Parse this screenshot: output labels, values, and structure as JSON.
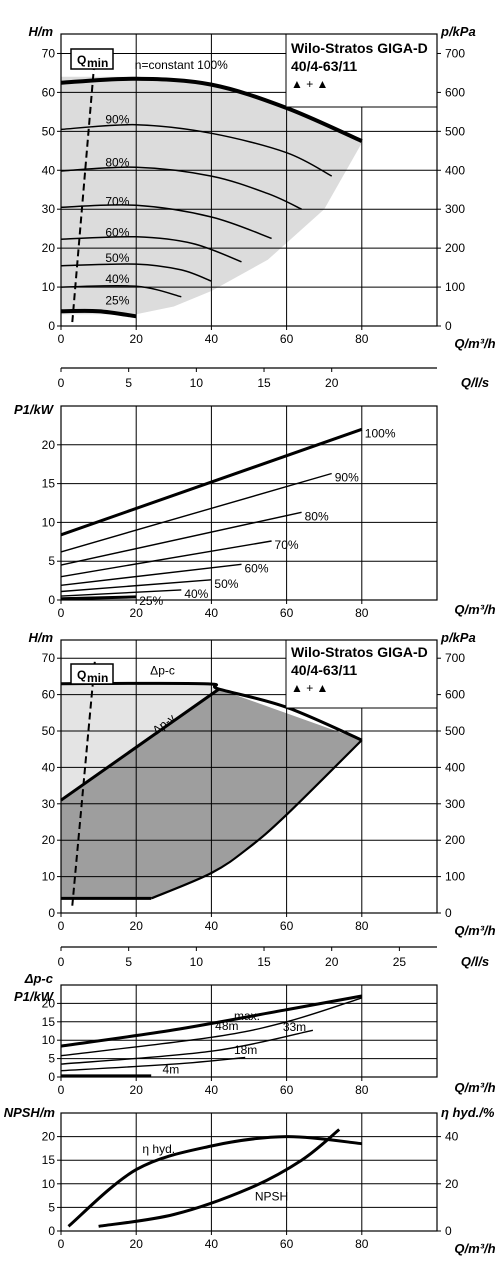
{
  "chart_data": [
    {
      "type": "line",
      "id": "head-variable-speed",
      "title": [
        "Wilo-Stratos GIGA-D",
        "40/4-63/11"
      ],
      "title_symbol": "▲ + ▲",
      "ylabel": "H/m",
      "y2label": "p/kPa",
      "xlabel": "Q/m³/h",
      "xlim": [
        0,
        100
      ],
      "ylim": [
        0,
        75
      ],
      "y2lim": [
        0,
        750
      ],
      "xticks": [
        0,
        20,
        40,
        60,
        80
      ],
      "yticks": [
        0,
        10,
        20,
        30,
        40,
        50,
        60,
        70
      ],
      "y2ticks": [
        0,
        100,
        200,
        300,
        400,
        500,
        600,
        700
      ],
      "qmin_label": "Q",
      "qmin_sub": "min",
      "qmin_line": [
        [
          3,
          1
        ],
        [
          9,
          69
        ]
      ],
      "shaded_region": [
        [
          0,
          3
        ],
        [
          0,
          64
        ],
        [
          20,
          64
        ],
        [
          40,
          62.5
        ],
        [
          60,
          56
        ],
        [
          80,
          47
        ],
        [
          70,
          30
        ],
        [
          55,
          17
        ],
        [
          40,
          9
        ],
        [
          30,
          5
        ],
        [
          20,
          3
        ]
      ],
      "series": [
        {
          "name": "n=constant 100%",
          "bold": true,
          "points": [
            [
              0,
              62.5
            ],
            [
              20,
              63.5
            ],
            [
              40,
              62
            ],
            [
              60,
              56
            ],
            [
              80,
              47.5
            ]
          ]
        },
        {
          "name": "90%",
          "points": [
            [
              0,
              50.5
            ],
            [
              20,
              51.7
            ],
            [
              40,
              49.5
            ],
            [
              60,
              44.5
            ],
            [
              72,
              38.5
            ]
          ]
        },
        {
          "name": "80%",
          "points": [
            [
              0,
              39.8
            ],
            [
              20,
              40.8
            ],
            [
              40,
              38.5
            ],
            [
              55,
              34
            ],
            [
              64,
              30
            ]
          ]
        },
        {
          "name": "70%",
          "points": [
            [
              0,
              30.5
            ],
            [
              20,
              31
            ],
            [
              40,
              28
            ],
            [
              56,
              22.5
            ]
          ]
        },
        {
          "name": "60%",
          "points": [
            [
              0,
              22.3
            ],
            [
              20,
              22.9
            ],
            [
              35,
              21.2
            ],
            [
              48,
              16.5
            ]
          ]
        },
        {
          "name": "50%",
          "points": [
            [
              0,
              15.5
            ],
            [
              20,
              15.9
            ],
            [
              32,
              14.4
            ],
            [
              40,
              11.5
            ]
          ]
        },
        {
          "name": "40%",
          "points": [
            [
              0,
              10
            ],
            [
              20,
              10.2
            ],
            [
              32,
              7.5
            ]
          ]
        },
        {
          "name": "25%",
          "bold": true,
          "points": [
            [
              0,
              3.8
            ],
            [
              10,
              3.8
            ],
            [
              20,
              2.5
            ]
          ]
        }
      ]
    },
    {
      "type": "axis",
      "id": "flow-ls-axis",
      "xlabel": "Q/l/s",
      "xlim": [
        0,
        27.78
      ],
      "xticks": [
        0,
        5,
        10,
        15,
        20
      ]
    },
    {
      "type": "line",
      "id": "power-variable-speed",
      "ylabel": "P1/kW",
      "xlabel": "Q/m³/h",
      "xlim": [
        0,
        100
      ],
      "ylim": [
        0,
        25
      ],
      "xticks": [
        0,
        20,
        40,
        60,
        80
      ],
      "yticks": [
        0,
        5,
        10,
        15,
        20
      ],
      "series": [
        {
          "name": "100%",
          "bold": true,
          "points": [
            [
              0,
              8.4
            ],
            [
              80,
              22
            ]
          ]
        },
        {
          "name": "90%",
          "points": [
            [
              0,
              6.2
            ],
            [
              72,
              16.3
            ]
          ]
        },
        {
          "name": "80%",
          "points": [
            [
              0,
              4.5
            ],
            [
              64,
              11.3
            ]
          ]
        },
        {
          "name": "70%",
          "points": [
            [
              0,
              3
            ],
            [
              56,
              7.6
            ]
          ]
        },
        {
          "name": "60%",
          "points": [
            [
              0,
              1.9
            ],
            [
              48,
              4.6
            ]
          ]
        },
        {
          "name": "50%",
          "points": [
            [
              0,
              1.1
            ],
            [
              40,
              2.6
            ]
          ]
        },
        {
          "name": "40%",
          "points": [
            [
              0,
              0.5
            ],
            [
              32,
              1.3
            ]
          ]
        },
        {
          "name": "25%",
          "bold": true,
          "points": [
            [
              0,
              0.15
            ],
            [
              20,
              0.4
            ]
          ]
        }
      ]
    },
    {
      "type": "area",
      "id": "head-differential-pressure",
      "title": [
        "Wilo-Stratos GIGA-D",
        "40/4-63/11"
      ],
      "title_symbol": "▲ + ▲",
      "ylabel": "H/m",
      "y2label": "p/kPa",
      "xlabel": "Q/m³/h",
      "xlim": [
        0,
        100
      ],
      "ylim": [
        0,
        75
      ],
      "y2lim": [
        0,
        750
      ],
      "xticks": [
        0,
        20,
        40,
        60,
        80
      ],
      "yticks": [
        0,
        10,
        20,
        30,
        40,
        50,
        60,
        70
      ],
      "y2ticks": [
        0,
        100,
        200,
        300,
        400,
        500,
        600,
        700
      ],
      "qmin_label": "Q",
      "qmin_sub": "min",
      "qmin_line": [
        [
          3,
          2
        ],
        [
          9,
          69
        ]
      ],
      "light_region": [
        [
          0,
          63
        ],
        [
          38,
          63
        ],
        [
          42,
          61.5
        ],
        [
          0,
          31
        ]
      ],
      "dark_region": [
        [
          0,
          31
        ],
        [
          42,
          61.5
        ],
        [
          80,
          47.5
        ],
        [
          60,
          27
        ],
        [
          50,
          18
        ],
        [
          40,
          11
        ],
        [
          24,
          4
        ],
        [
          0,
          4
        ]
      ],
      "dpc_curve": [
        [
          0,
          63
        ],
        [
          38,
          63
        ],
        [
          42,
          61.5
        ],
        [
          60,
          56.5
        ],
        [
          80,
          47.5
        ]
      ],
      "dpv_line": [
        [
          0,
          31
        ],
        [
          42,
          61.5
        ]
      ],
      "right_edge": [
        [
          80,
          47.5
        ],
        [
          60,
          27
        ],
        [
          50,
          18
        ],
        [
          40,
          11
        ],
        [
          24,
          4
        ]
      ],
      "bottom_curve": [
        [
          0,
          4
        ],
        [
          24,
          4
        ]
      ],
      "dpc_label": "Δp-c",
      "dpv_label": "Δp-v"
    },
    {
      "type": "axis",
      "id": "flow-ls-axis-2",
      "xlabel": "Q/l/s",
      "xlim": [
        0,
        27.78
      ],
      "xticks": [
        0,
        5,
        10,
        15,
        20,
        25
      ]
    },
    {
      "type": "line",
      "id": "power-differential-pressure",
      "ylabel": "P1/kW",
      "ylabel_top": "Δp-c",
      "xlabel": "Q/m³/h",
      "xlim": [
        0,
        100
      ],
      "ylim": [
        0,
        25
      ],
      "xticks": [
        0,
        20,
        40,
        60,
        80
      ],
      "yticks": [
        0,
        5,
        10,
        15,
        20
      ],
      "series": [
        {
          "name": "max.",
          "bold": true,
          "points": [
            [
              0,
              8.4
            ],
            [
              30,
              12.8
            ],
            [
              60,
              18.3
            ],
            [
              80,
              22
            ]
          ]
        },
        {
          "name": "48m",
          "points": [
            [
              0,
              5.8
            ],
            [
              40,
              10.8
            ],
            [
              60,
              15
            ],
            [
              80,
              21.5
            ]
          ]
        },
        {
          "name": "33m",
          "points": [
            [
              0,
              3.5
            ],
            [
              40,
              7
            ],
            [
              67,
              12.7
            ]
          ]
        },
        {
          "name": "18m",
          "points": [
            [
              0,
              1.7
            ],
            [
              30,
              3.5
            ],
            [
              49,
              5.3
            ]
          ]
        },
        {
          "name": "4m",
          "bold": true,
          "points": [
            [
              0,
              0.3
            ],
            [
              24,
              0.3
            ]
          ]
        }
      ]
    },
    {
      "type": "line",
      "id": "npsh-efficiency",
      "ylabel": "NPSH/m",
      "y2label": "η hyd./%",
      "xlabel": "Q/m³/h",
      "xlim": [
        0,
        100
      ],
      "ylim": [
        0,
        25
      ],
      "y2lim": [
        0,
        50
      ],
      "xticks": [
        0,
        20,
        40,
        60,
        80
      ],
      "yticks": [
        0,
        5,
        10,
        15,
        20
      ],
      "y2ticks": [
        0,
        20,
        40
      ],
      "series": [
        {
          "name": "η hyd.",
          "axis": "right",
          "points": [
            [
              2,
              2
            ],
            [
              20,
              26
            ],
            [
              40,
              36
            ],
            [
              60,
              40
            ],
            [
              80,
              37
            ]
          ]
        },
        {
          "name": "NPSH",
          "axis": "left",
          "points": [
            [
              10,
              1
            ],
            [
              30,
              3.5
            ],
            [
              50,
              9
            ],
            [
              64,
              15
            ],
            [
              74,
              21.5
            ]
          ]
        }
      ]
    }
  ]
}
